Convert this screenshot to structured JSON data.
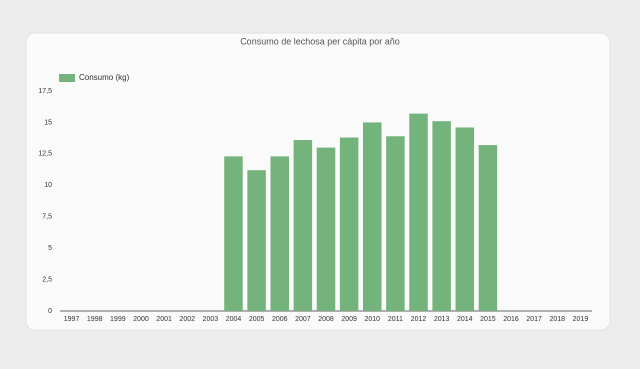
{
  "chart_data": {
    "type": "bar",
    "title": "Consumo de lechosa per cápita por año",
    "categories": [
      "1997",
      "1998",
      "1999",
      "2000",
      "2001",
      "2002",
      "2003",
      "2004",
      "2005",
      "2006",
      "2007",
      "2008",
      "2009",
      "2010",
      "2011",
      "2012",
      "2013",
      "2014",
      "2015",
      "2016",
      "2017",
      "2018",
      "2019"
    ],
    "series": [
      {
        "name": "Consumo (kg)",
        "color": "#75b37c",
        "values": [
          null,
          null,
          null,
          null,
          null,
          null,
          null,
          12.3,
          11.2,
          12.3,
          13.6,
          13.0,
          13.8,
          15.0,
          13.9,
          15.7,
          15.1,
          14.6,
          13.2,
          null,
          null,
          null,
          null
        ]
      }
    ],
    "ylim": [
      0,
      17.5
    ],
    "yticks": [
      0,
      {
        "value": 2.5,
        "label": "2,5"
      },
      5,
      {
        "value": 7.5,
        "label": "7,5"
      },
      10,
      {
        "value": 12.5,
        "label": "12,5"
      },
      15,
      {
        "value": 17.5,
        "label": "17,5"
      }
    ],
    "grid": false,
    "legend": "top-left"
  }
}
